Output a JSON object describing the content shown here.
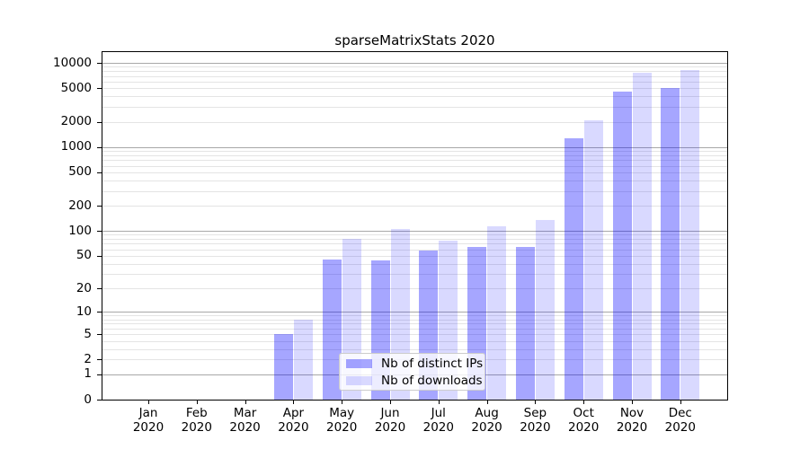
{
  "title": "sparseMatrixStats 2020",
  "chart_data": {
    "type": "bar",
    "title": "sparseMatrixStats 2020",
    "categories": [
      "Jan",
      "Feb",
      "Mar",
      "Apr",
      "May",
      "Jun",
      "Jul",
      "Aug",
      "Sep",
      "Oct",
      "Nov",
      "Dec"
    ],
    "x_year_label": "2020",
    "series": [
      {
        "name": "Nb of distinct IPs",
        "color": "#a6a6ff",
        "base_color": "#0000ff",
        "alpha": 0.35,
        "values": [
          0,
          0,
          0,
          5,
          45,
          44,
          58,
          64,
          64,
          1270,
          4550,
          5020
        ]
      },
      {
        "name": "Nb of downloads",
        "color": "#d9d9ff",
        "base_color": "#0000ff",
        "alpha": 0.15,
        "values": [
          0,
          0,
          0,
          8,
          80,
          105,
          77,
          114,
          135,
          2080,
          7640,
          8220
        ]
      }
    ],
    "y_scale": "log10(1+x)",
    "y_ticks": [
      0,
      1,
      2,
      5,
      10,
      20,
      50,
      100,
      200,
      500,
      1000,
      2000,
      5000,
      10000
    ],
    "ylim": [
      0,
      13400
    ],
    "grid": {
      "orientation": "horizontal",
      "major_at_decades": [
        1,
        10,
        100,
        1000,
        10000
      ],
      "minor_per_decade": [
        2,
        3,
        4,
        5,
        6,
        7,
        8,
        9
      ],
      "major_color": "#a8a8a8",
      "minor_color": "#e4e4e4"
    },
    "legend_position": "lower center",
    "axis_color": "#000000",
    "background_color": "#ffffff"
  }
}
